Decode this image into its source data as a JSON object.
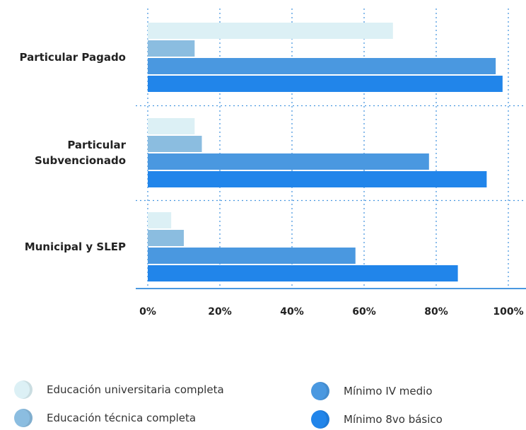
{
  "chart_data": {
    "type": "hbar",
    "categories": [
      "Particular Pagado",
      "Particular Subvencionado",
      "Municipal y SLEP"
    ],
    "series": [
      {
        "name": "Educación universitaria completa",
        "color": "#dcf0f5",
        "values": [
          68,
          13,
          6.5
        ]
      },
      {
        "name": "Educación técnica completa",
        "color": "#8bbde0",
        "values": [
          13,
          15,
          10
        ]
      },
      {
        "name": "Mínimo IV medio",
        "color": "#4a98e0",
        "values": [
          96.5,
          78,
          57.6
        ]
      },
      {
        "name": "Mínimo 8vo básico",
        "color": "#2185ea",
        "values": [
          98.4,
          94,
          86
        ]
      }
    ],
    "xlim": [
      0,
      100
    ],
    "xticks": [
      {
        "value": 0,
        "label": "0%"
      },
      {
        "value": 20,
        "label": "20%"
      },
      {
        "value": 40,
        "label": "40%"
      },
      {
        "value": 60,
        "label": "60%"
      },
      {
        "value": 80,
        "label": "80%"
      },
      {
        "value": 100,
        "label": "100%"
      }
    ],
    "grid": true
  }
}
